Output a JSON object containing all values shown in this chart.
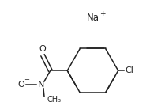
{
  "bg_color": "#ffffff",
  "line_color": "#222222",
  "text_color": "#222222",
  "figsize": [
    1.9,
    1.34
  ],
  "dpi": 100,
  "na_text": "Na",
  "plus_text": "+",
  "na_fontsize": 8.5,
  "plus_fontsize": 6.5,
  "cl_text": "Cl",
  "cl_fontsize": 8,
  "o_carbonyl_text": "O",
  "o_carbonyl_fontsize": 8,
  "n_text": "N",
  "n_fontsize": 8,
  "o_minus_text": "O",
  "o_minus_fontsize": 8,
  "methyl_text": "CH₃",
  "methyl_fontsize": 7,
  "line_width": 1.1
}
